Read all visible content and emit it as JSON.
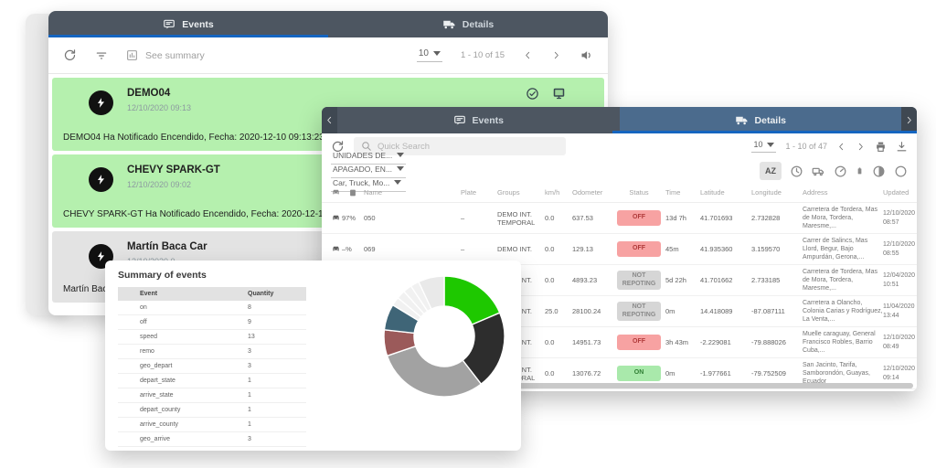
{
  "colors": {
    "accent_blue": "#1565c0",
    "header_dark": "#4d5661",
    "details_tab_blue": "#4b6b8d",
    "green_row": "#b5f0ae",
    "gray_row": "#e3e3e3",
    "badge_off_bg": "#f7a2a2",
    "badge_on_bg": "#a9e9ab",
    "badge_notrep_bg": "#d6d6d6"
  },
  "back_window": {
    "tabs": [
      {
        "label": "Events"
      },
      {
        "label": "Details"
      }
    ],
    "toolbar": {
      "see_summary": "See summary",
      "page_size": "10",
      "range": "1 - 10 of 15"
    },
    "events": [
      {
        "title": "DEMO04",
        "date": "12/10/2020 09:13",
        "message": "DEMO04 Ha Notificado Encendido, Fecha: 2020-12-10 09:13:23",
        "highlight": "green",
        "show_action_icons": true
      },
      {
        "title": "CHEVY SPARK-GT",
        "date": "12/10/2020 09:02",
        "message": "CHEVY SPARK-GT Ha Notificado Encendido, Fecha: 2020-12-10 09:02:4",
        "highlight": "green",
        "show_action_icons": false
      },
      {
        "title": "Martín Baca Car",
        "date": "12/10/2020 0",
        "message": "Martín Baca Car Ha",
        "highlight": "gray",
        "show_action_icons": false
      }
    ]
  },
  "front_window": {
    "tabs": [
      {
        "label": "Events"
      },
      {
        "label": "Details"
      }
    ],
    "toolbar": {
      "search_placeholder": "Quick Search",
      "page_size": "10",
      "range": "1 - 10 of 47"
    },
    "filters": [
      "UNIDADES DE...",
      "APAGADO, EN...",
      "Car, Truck, Mo..."
    ],
    "sort_label": "AZ",
    "table": {
      "headers": [
        "Name",
        "Plate",
        "Groups",
        "km/h",
        "Odometer",
        "Status",
        "Time",
        "Latitude",
        "Longitude",
        "Address",
        "Updated"
      ],
      "rows": [
        {
          "battery": "97%",
          "name": "050",
          "plate": "–",
          "groups": "DEMO INT. TEMPORAL",
          "kmh": "0.0",
          "odometer": "637.53",
          "status": "OFF",
          "status_type": "off",
          "time": "13d 7h",
          "latitude": "41.701693",
          "longitude": "2.732828",
          "address": "Carretera de Tordera, Mas de Mora, Tordera, Maresme,...",
          "updated": "12/10/2020 08:57"
        },
        {
          "battery": "–%",
          "name": "069",
          "plate": "–",
          "groups": "DEMO INT.",
          "kmh": "0.0",
          "odometer": "129.13",
          "status": "OFF",
          "status_type": "off",
          "time": "45m",
          "latitude": "41.935360",
          "longitude": "3.159570",
          "address": "Carrer de Salincs, Mas Llord, Begur, Bajo Ampurdán, Gerona,...",
          "updated": "12/10/2020 08:55"
        },
        {
          "battery": "",
          "name": "",
          "plate": "",
          "groups": "DEMO INT.",
          "kmh": "0.0",
          "odometer": "4893.23",
          "status": "NOT REPOTING",
          "status_type": "not-reporting",
          "time": "5d 22h",
          "latitude": "41.701662",
          "longitude": "2.733185",
          "address": "Carretera de Tordera, Mas de Mora, Tordera, Maresme,...",
          "updated": "12/04/2020 10:51"
        },
        {
          "battery": "",
          "name": "",
          "plate": "",
          "groups": "DEMO INT.",
          "kmh": "25.0",
          "odometer": "28100.24",
          "status": "NOT REPOTING",
          "status_type": "not-reporting",
          "time": "0m",
          "latitude": "14.418089",
          "longitude": "-87.087111",
          "address": "Carretera a Olancho, Colonia Carias y Rodríguez, La Venta,...",
          "updated": "11/04/2020 13:44"
        },
        {
          "battery": "",
          "name": "",
          "plate": "",
          "groups": "DEMO INT.",
          "kmh": "0.0",
          "odometer": "14951.73",
          "status": "OFF",
          "status_type": "off",
          "time": "3h 43m",
          "latitude": "-2.229081",
          "longitude": "-79.888026",
          "address": "Muelle caraguay, General Francisco Robles, Barrio Cuba,...",
          "updated": "12/10/2020 08:49"
        },
        {
          "battery": "",
          "name": "",
          "plate": "",
          "groups": "DEMO INT. TEMPORAL",
          "kmh": "0.0",
          "odometer": "13076.72",
          "status": "ON",
          "status_type": "on",
          "time": "0m",
          "latitude": "-1.977661",
          "longitude": "-79.752509",
          "address": "San Jacinto, Tarifa, Samborondón, Guayas, Ecuador",
          "updated": "12/10/2020 09:14"
        }
      ]
    }
  },
  "summary_window": {
    "title": "Summary of events",
    "headers": [
      "Event",
      "Quantity"
    ],
    "rows": [
      {
        "event": "on",
        "quantity": "8",
        "color": "#1ec800"
      },
      {
        "event": "off",
        "quantity": "9",
        "color": "#222222"
      },
      {
        "event": "speed",
        "quantity": "13",
        "color": "#9e9e9e"
      },
      {
        "event": "remo",
        "quantity": "3",
        "color": "#9b5a5a"
      },
      {
        "event": "geo_depart",
        "quantity": "3",
        "color": "#3f6577"
      },
      {
        "event": "depart_state",
        "quantity": "1",
        "color": "#111111"
      },
      {
        "event": "arrive_state",
        "quantity": "1",
        "color": "#111111"
      },
      {
        "event": "depart_county",
        "quantity": "1",
        "color": "#111111"
      },
      {
        "event": "arrive_county",
        "quantity": "1",
        "color": "#111111"
      },
      {
        "event": "geo_arrive",
        "quantity": "3",
        "color": "#111111"
      }
    ]
  },
  "chart_data": {
    "type": "pie",
    "title": "Summary of events",
    "donut": true,
    "categories": [
      "on",
      "off",
      "speed",
      "remo",
      "geo_depart",
      "depart_state",
      "arrive_state",
      "depart_county",
      "arrive_county",
      "geo_arrive"
    ],
    "values": [
      8,
      9,
      13,
      3,
      3,
      1,
      1,
      1,
      1,
      3
    ],
    "colors": [
      "#1ec800",
      "#2d2d2d",
      "#a2a2a2",
      "#9b5a5a",
      "#3f6577",
      "#f1f1f1",
      "#f1f1f1",
      "#f1f1f1",
      "#f1f1f1",
      "#e9e9e9"
    ],
    "legend_position": "left-table",
    "start_angle_deg": 0,
    "direction": "clockwise"
  }
}
